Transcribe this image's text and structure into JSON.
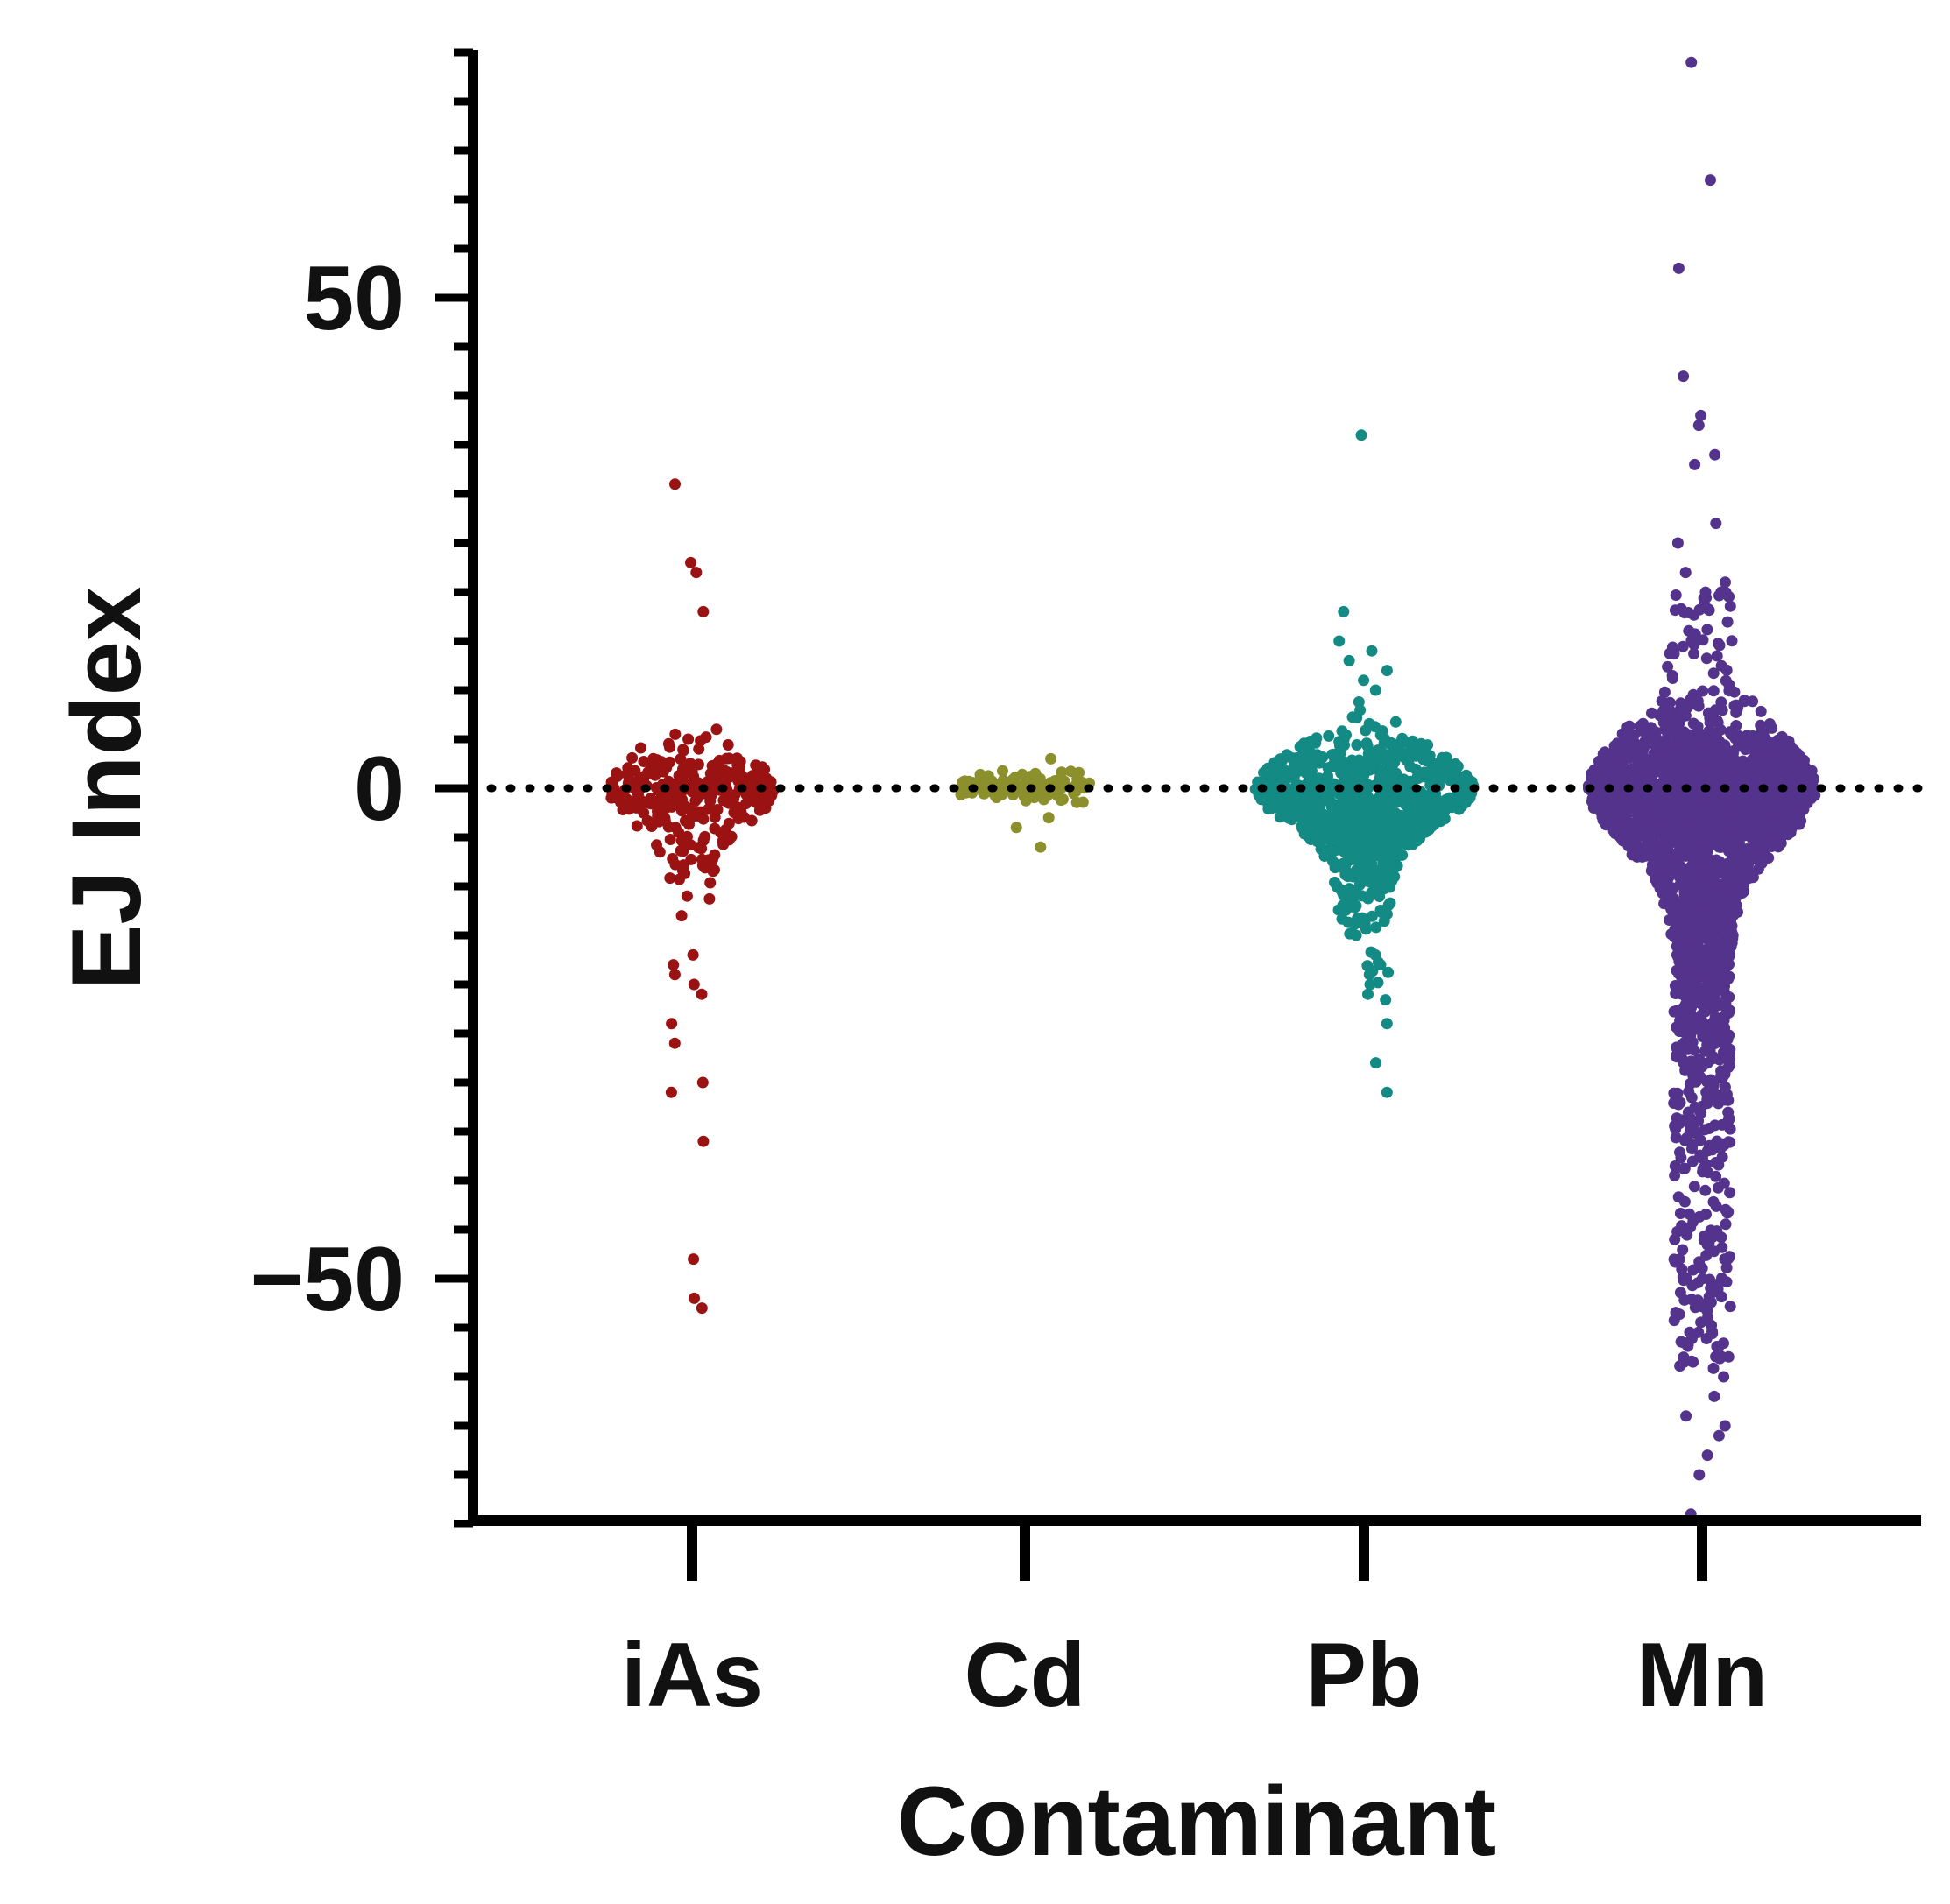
{
  "chart_data": {
    "type": "scatter",
    "subtype": "beeswarm",
    "title": "",
    "xlabel": "Contaminant",
    "ylabel": "EJ Index",
    "categories": [
      "iAs",
      "Cd",
      "Pb",
      "Mn"
    ],
    "ylim": [
      -75,
      75
    ],
    "y_ticks": [
      {
        "value": 50,
        "label": "50"
      },
      {
        "value": 0,
        "label": "0"
      },
      {
        "value": -50,
        "label": "−50"
      }
    ],
    "minor_tick_step": 5,
    "reference_line": {
      "value": 0,
      "style": "dotted",
      "color": "#000000"
    },
    "grid": false,
    "legend": "none",
    "series": [
      {
        "name": "iAs",
        "color": "#9b1212",
        "n_points": 280,
        "outliers": [
          31,
          23,
          22,
          18,
          6,
          5.5,
          5,
          -11,
          -13,
          -17,
          -18,
          -19,
          -20,
          -21,
          -24,
          -26,
          -30,
          -31,
          -36,
          -48,
          -52,
          -53
        ],
        "core_spread": [
          -7,
          5
        ],
        "seed": 11
      },
      {
        "name": "Cd",
        "color": "#8b8f2c",
        "n_points": 110,
        "outliers": [
          3,
          1.5,
          -3,
          -4,
          -6
        ],
        "core_spread": [
          -2,
          2
        ],
        "seed": 23
      },
      {
        "name": "Pb",
        "color": "#138a84",
        "n_points": 900,
        "outliers": [
          36,
          18,
          15,
          14,
          13,
          12,
          11,
          10,
          -15,
          -17,
          -18,
          -19,
          -20,
          -21,
          -24,
          -28,
          -31
        ],
        "core_spread": [
          -12,
          6
        ],
        "seed": 37
      },
      {
        "name": "Mn",
        "color": "#54338d",
        "n_points": 2600,
        "outliers": [
          74,
          62,
          53,
          42,
          38,
          37,
          34,
          33,
          27,
          25,
          22,
          21,
          20,
          -58,
          -62,
          -64,
          -65,
          -66,
          -68,
          -70,
          -74
        ],
        "core_spread": [
          -60,
          20
        ],
        "seed": 53
      }
    ]
  }
}
